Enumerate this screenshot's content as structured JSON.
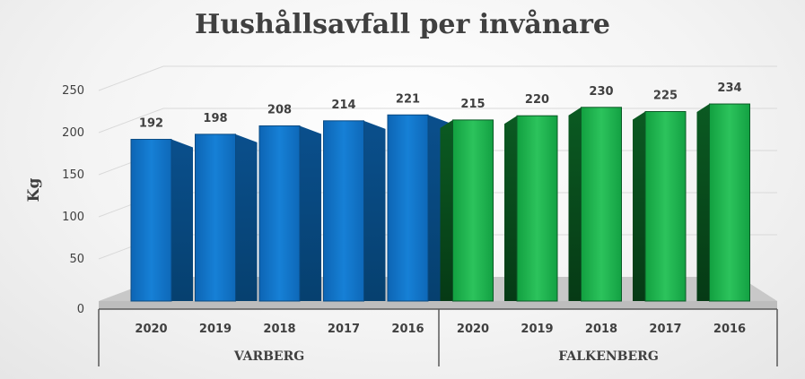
{
  "chart_data": {
    "type": "bar",
    "title": "Hushållsavfall per invånare",
    "ylabel": "Kg",
    "xlabel": "",
    "ylim": [
      0,
      250
    ],
    "yticks": [
      0,
      50,
      100,
      150,
      200,
      250
    ],
    "grid": true,
    "legend": "none",
    "three_d": true,
    "groups": [
      {
        "name": "VARBERG",
        "color": "#1273c4",
        "categories": [
          "2020",
          "2019",
          "2018",
          "2017",
          "2016"
        ],
        "values": [
          192,
          198,
          208,
          214,
          221
        ]
      },
      {
        "name": "FALKENBERG",
        "color": "#1fb14e",
        "categories": [
          "2020",
          "2019",
          "2018",
          "2017",
          "2016"
        ],
        "values": [
          215,
          220,
          230,
          225,
          234
        ]
      }
    ]
  }
}
